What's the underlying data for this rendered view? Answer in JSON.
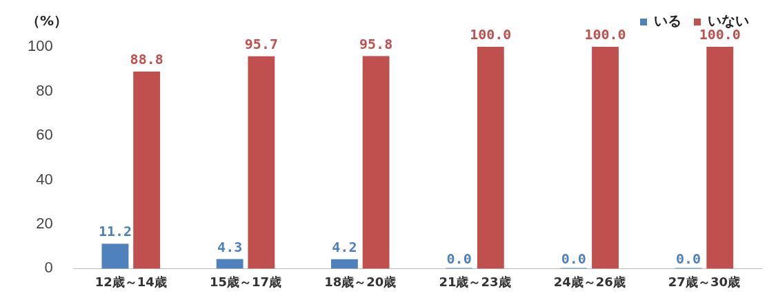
{
  "chart_data": {
    "type": "bar",
    "ylabel": "（%）",
    "categories": [
      "12歳～14歳",
      "15歳～17歳",
      "18歳～20歳",
      "21歳～23歳",
      "24歳～26歳",
      "27歳～30歳"
    ],
    "series": [
      {
        "name": "いる",
        "color": "#4f81bd",
        "values": [
          11.2,
          4.3,
          4.2,
          0,
          0,
          0
        ],
        "value_labels": [
          "11.2",
          "4.3",
          "4.2",
          "0.0",
          "0.0",
          "0.0"
        ]
      },
      {
        "name": "いない",
        "color": "#c0504d",
        "values": [
          88.8,
          95.7,
          95.8,
          100,
          100,
          100
        ],
        "value_labels": [
          "88.8",
          "95.7",
          "95.8",
          "100.0",
          "100.0",
          "100.0"
        ]
      }
    ],
    "ylim": [
      0,
      100
    ],
    "yticks": [
      0,
      20,
      40,
      60,
      80,
      100
    ],
    "grid": false,
    "legend": "top right"
  }
}
